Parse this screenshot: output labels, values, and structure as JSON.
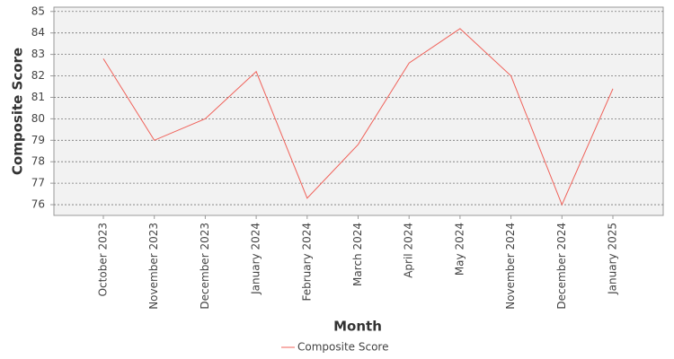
{
  "chart_data": {
    "type": "line",
    "x_label": "Month",
    "y_label": "Composite Score",
    "categories": [
      "October 2023",
      "November 2023",
      "December 2023",
      "January 2024",
      "February 2024",
      "March 2024",
      "April 2024",
      "May 2024",
      "November 2024",
      "December 2024",
      "January 2025"
    ],
    "series": [
      {
        "name": "Composite Score",
        "color": "#f0625a",
        "values": [
          82.8,
          79.0,
          80.0,
          82.2,
          76.3,
          78.8,
          82.6,
          84.2,
          82.0,
          76.0,
          81.4
        ]
      }
    ],
    "ylim": [
      75.5,
      85.2
    ],
    "yticks": [
      76,
      77,
      78,
      79,
      80,
      81,
      82,
      83,
      84,
      85
    ],
    "grid": true,
    "legend": "bottom"
  }
}
